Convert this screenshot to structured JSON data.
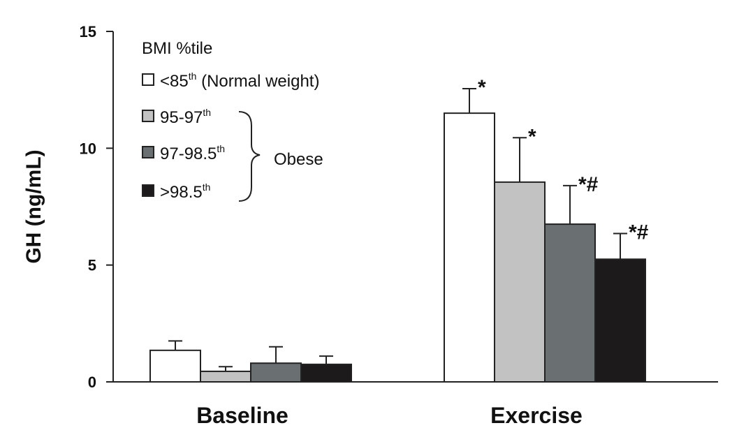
{
  "chart_data": {
    "type": "bar",
    "title": "",
    "ylabel": "GH (ng/mL)",
    "xlabel": "",
    "ylim": [
      0,
      15
    ],
    "yticks": [
      0,
      5,
      10,
      15
    ],
    "categories": [
      "Baseline",
      "Exercise"
    ],
    "legend": {
      "title": "BMI %tile",
      "group_label": "Obese"
    },
    "series": [
      {
        "name": "<85",
        "sup": "th",
        "suffix": " (Normal weight)",
        "color": "#ffffff",
        "values": [
          1.35,
          11.5
        ],
        "errors": [
          0.4,
          1.05
        ],
        "annotations": [
          "",
          "*"
        ]
      },
      {
        "name": "95-97",
        "sup": "th",
        "suffix": "",
        "color": "#c2c2c2",
        "values": [
          0.45,
          8.55
        ],
        "errors": [
          0.2,
          1.9
        ],
        "annotations": [
          "",
          "*"
        ]
      },
      {
        "name": "97-98.5",
        "sup": "th",
        "suffix": "",
        "color": "#6a6f72",
        "values": [
          0.8,
          6.75
        ],
        "errors": [
          0.7,
          1.65
        ],
        "annotations": [
          "",
          "*#"
        ]
      },
      {
        "name": ">98.5",
        "sup": "th",
        "suffix": "",
        "color": "#1c1a1b",
        "values": [
          0.75,
          5.25
        ],
        "errors": [
          0.35,
          1.1
        ],
        "annotations": [
          "",
          "*#"
        ]
      }
    ]
  }
}
